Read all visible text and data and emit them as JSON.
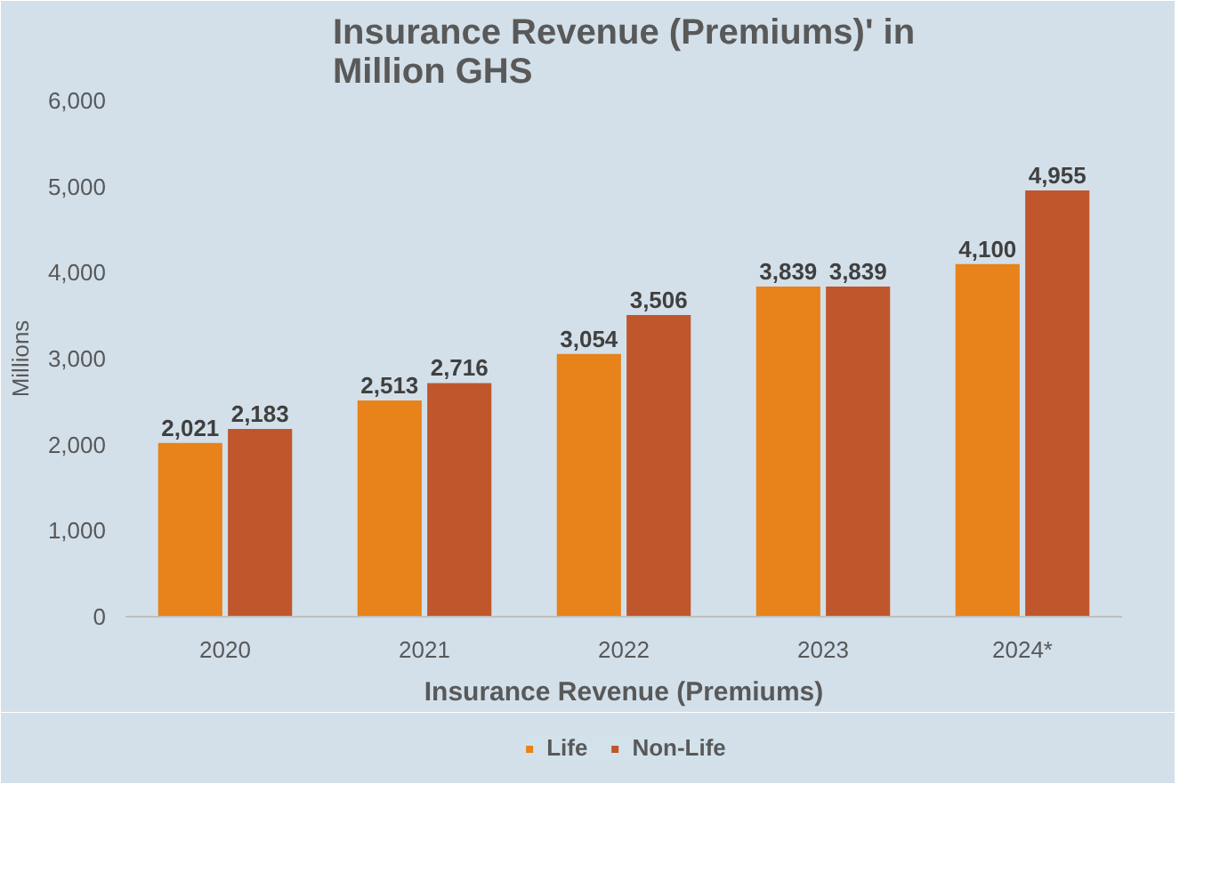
{
  "chart_data": {
    "type": "bar",
    "title": "Insurance Revenue (Premiums)' in Million GHS",
    "xlabel": "Insurance Revenue (Premiums)",
    "ylabel": "Millions",
    "categories": [
      "2020",
      "2021",
      "2022",
      "2023",
      "2024*"
    ],
    "series": [
      {
        "name": "Life",
        "color": "#e8821a",
        "values": [
          2021,
          2513,
          3054,
          3839,
          4100
        ],
        "value_labels": [
          "2,021",
          "2,513",
          "3,054",
          "3,839",
          "4,100"
        ]
      },
      {
        "name": "Non-Life",
        "color": "#c0562c",
        "values": [
          2183,
          2716,
          3506,
          3839,
          4955
        ],
        "value_labels": [
          "2,183",
          "2,716",
          "3,506",
          "3,839",
          "4,955"
        ]
      }
    ],
    "ylim": [
      0,
      6000
    ],
    "yticks": [
      {
        "value": 0,
        "label": "0"
      },
      {
        "value": 1000,
        "label": "1,000"
      },
      {
        "value": 2000,
        "label": "2,000"
      },
      {
        "value": 3000,
        "label": "3,000"
      },
      {
        "value": 4000,
        "label": "4,000"
      },
      {
        "value": 5000,
        "label": "5,000"
      },
      {
        "value": 6000,
        "label": "6,000"
      }
    ],
    "legend": "bottom",
    "grid": false
  }
}
